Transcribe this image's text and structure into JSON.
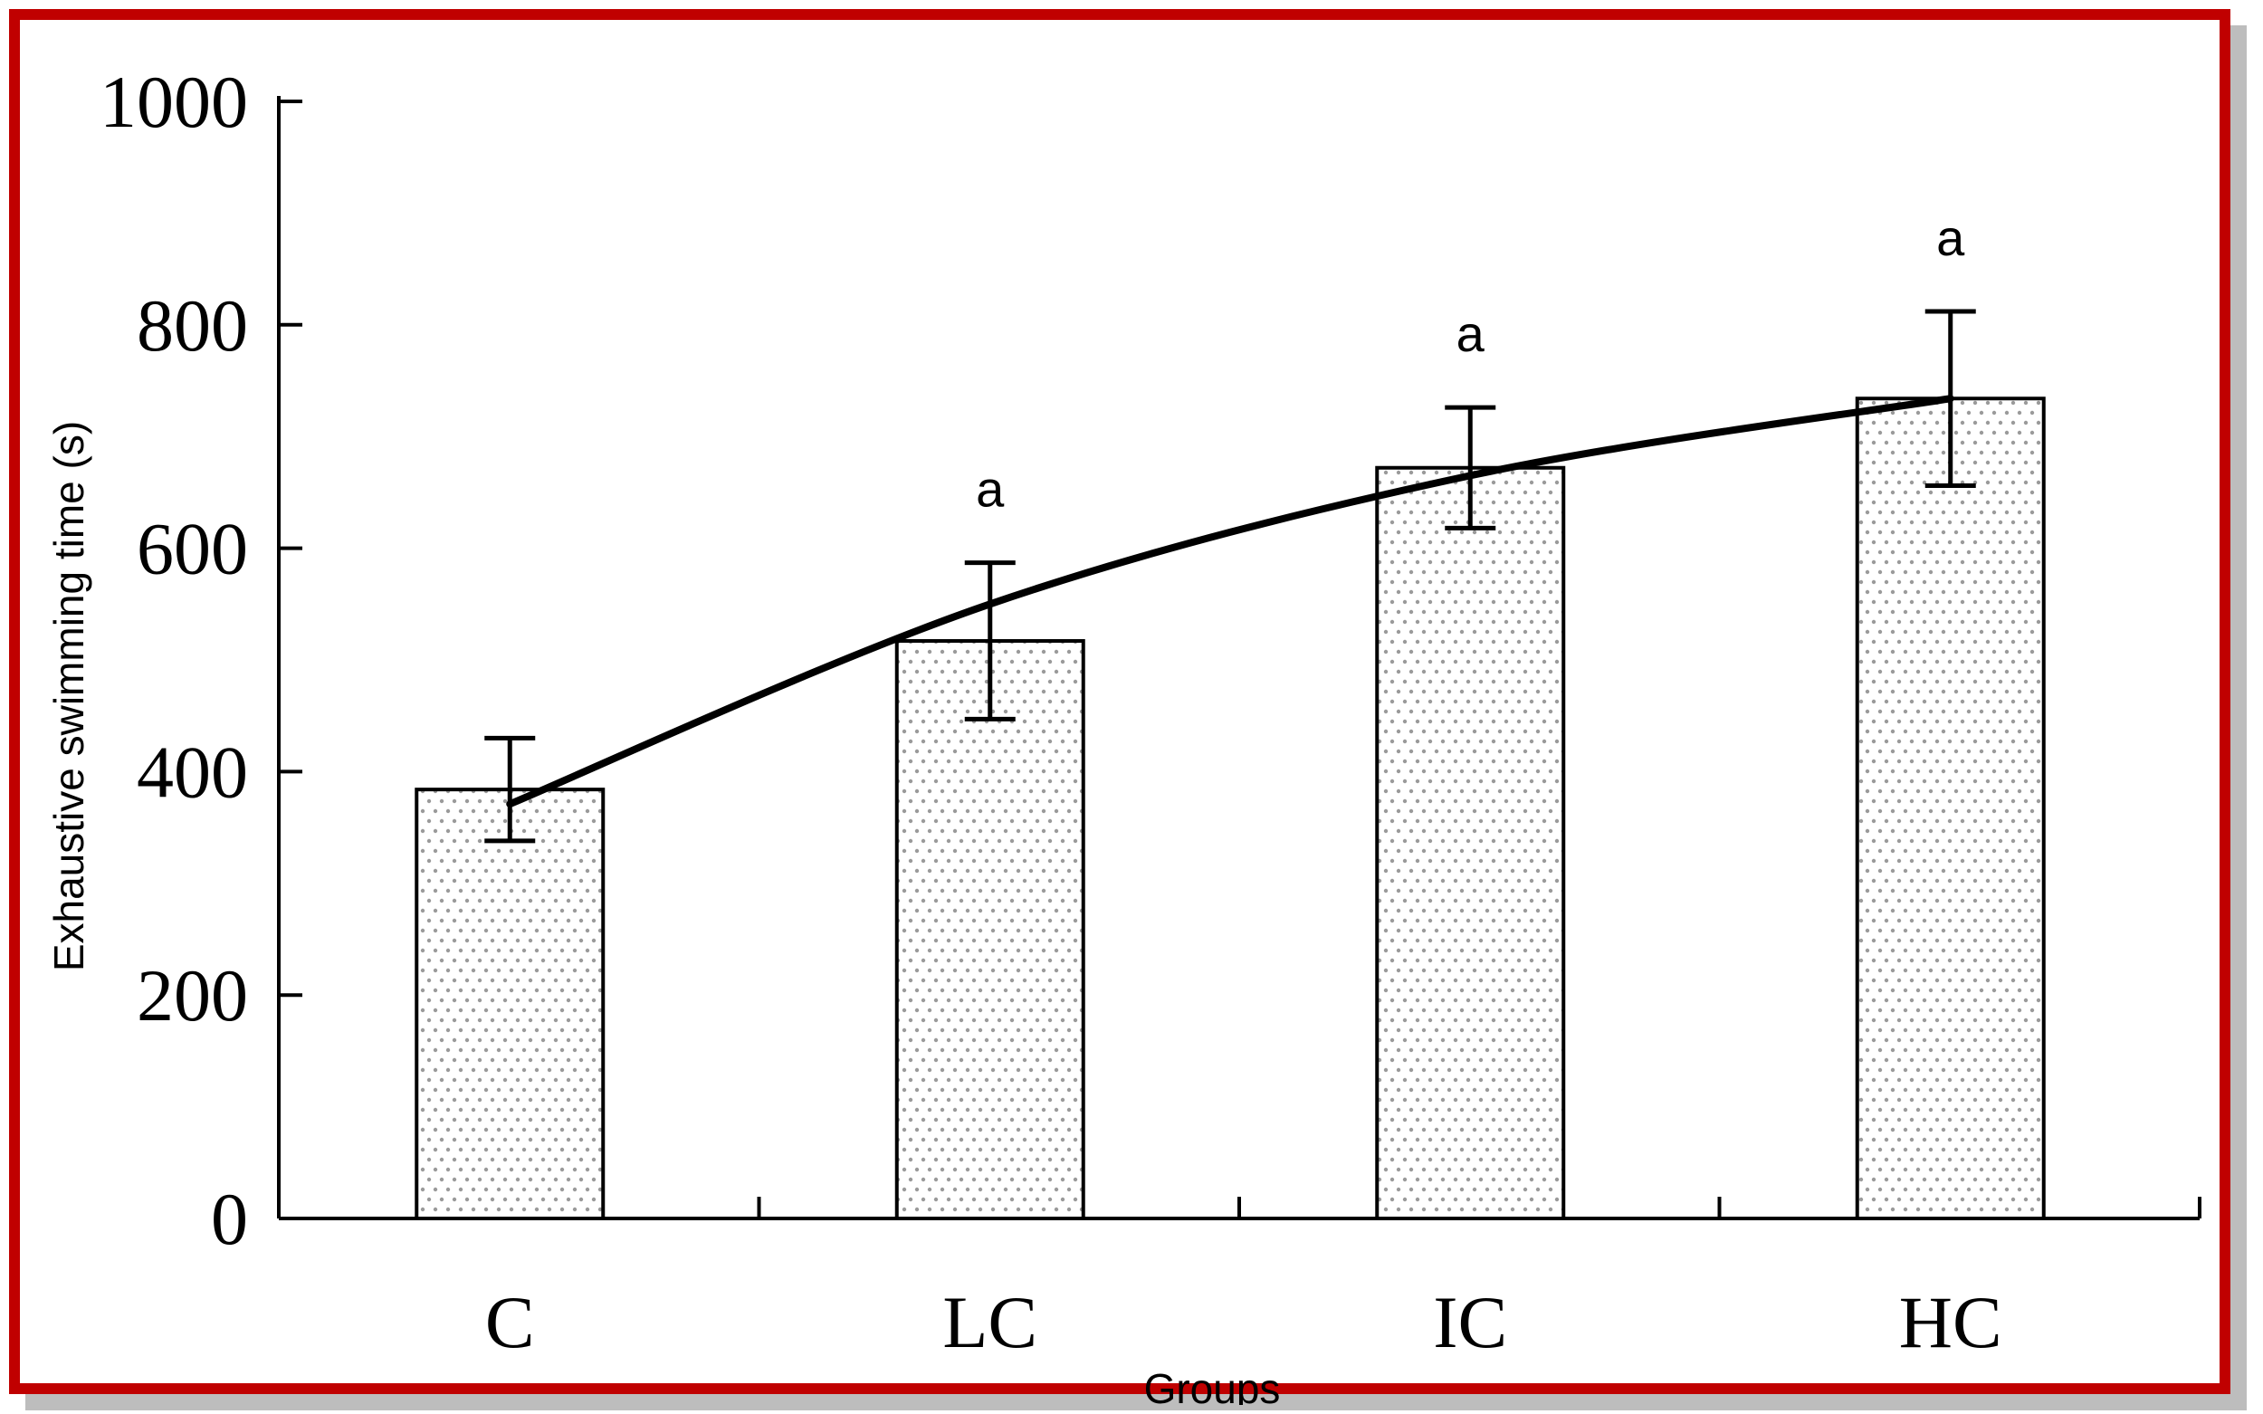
{
  "chart_data": {
    "type": "bar",
    "categories": [
      "C",
      "LC",
      "IC",
      "HC"
    ],
    "series": [
      {
        "values": [
          384,
          517,
          672,
          734
        ],
        "error": [
          46,
          70,
          54,
          78
        ],
        "significance": [
          "",
          "a",
          "a",
          "a"
        ]
      }
    ],
    "trend_line": {
      "values": [
        371,
        550,
        665,
        734
      ]
    },
    "ylabel": "Exhaustive swimming time (s)",
    "xlabel": "Groups",
    "ylim": [
      0,
      1000
    ],
    "yticks": [
      0,
      200,
      400,
      600,
      800,
      1000
    ],
    "grid": false,
    "bar_pattern": "dotted",
    "colors": {
      "frame": "#c00000",
      "bar_fill": "#ffffff",
      "dots": "#9a9a9a",
      "ink": "#000000"
    }
  }
}
